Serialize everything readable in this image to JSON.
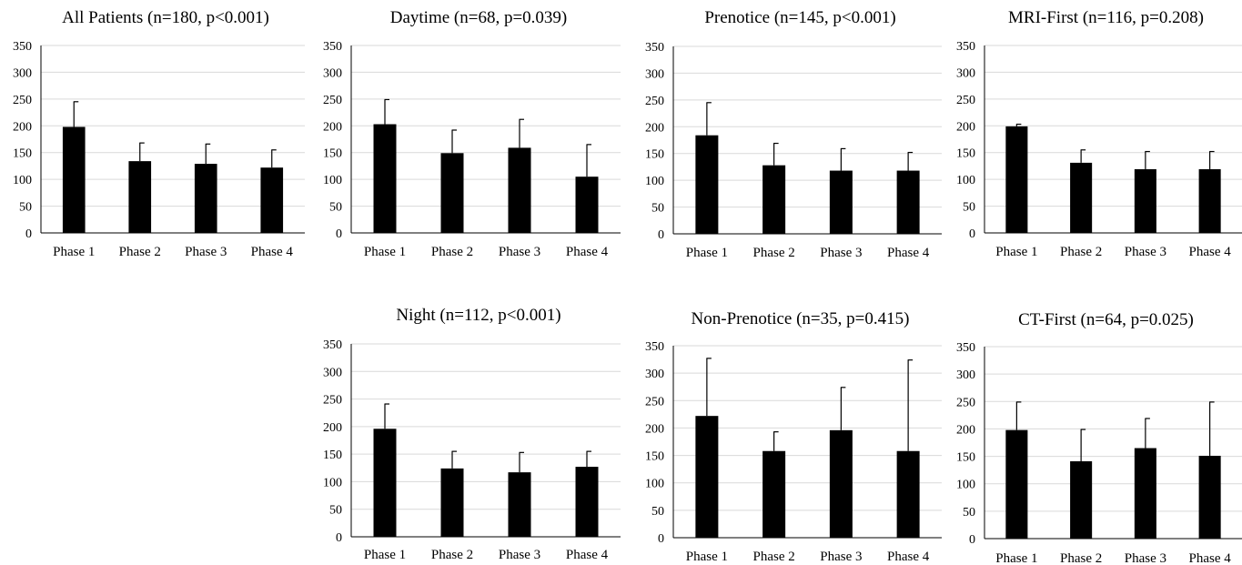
{
  "chart_data": [
    {
      "type": "bar",
      "title": "All Patients (n=180, p<0.001)",
      "categories": [
        "Phase 1",
        "Phase 2",
        "Phase 3",
        "Phase 4"
      ],
      "values": [
        198,
        134,
        129,
        122
      ],
      "error_upper": [
        245,
        168,
        166,
        155
      ],
      "yticks": [
        0,
        50,
        100,
        150,
        200,
        250,
        300,
        350
      ],
      "ylim": [
        0,
        350
      ],
      "grid": true
    },
    {
      "type": "bar",
      "title": "Daytime (n=68, p=0.039)",
      "categories": [
        "Phase 1",
        "Phase 2",
        "Phase 3",
        "Phase 4"
      ],
      "values": [
        203,
        149,
        159,
        105
      ],
      "error_upper": [
        249,
        192,
        212,
        165
      ],
      "yticks": [
        0,
        50,
        100,
        150,
        200,
        250,
        300,
        350
      ],
      "ylim": [
        0,
        350
      ],
      "grid": true
    },
    {
      "type": "bar",
      "title": "Prenotice (n=145, p<0.001)",
      "categories": [
        "Phase 1",
        "Phase 2",
        "Phase 3",
        "Phase 4"
      ],
      "values": [
        184,
        128,
        118,
        118
      ],
      "error_upper": [
        245,
        169,
        159,
        152
      ],
      "yticks": [
        0,
        50,
        100,
        150,
        200,
        250,
        300,
        350
      ],
      "ylim": [
        0,
        350
      ],
      "grid": true
    },
    {
      "type": "bar",
      "title": "MRI-First (n=116, p=0.208)",
      "categories": [
        "Phase 1",
        "Phase 2",
        "Phase 3",
        "Phase 4"
      ],
      "values": [
        199,
        131,
        119,
        119
      ],
      "error_upper": [
        203,
        155,
        152,
        152
      ],
      "yticks": [
        0,
        50,
        100,
        150,
        200,
        250,
        300,
        350
      ],
      "ylim": [
        0,
        350
      ],
      "grid": true
    },
    {
      "type": "bar",
      "title": "Night (n=112, p<0.001)",
      "categories": [
        "Phase 1",
        "Phase 2",
        "Phase 3",
        "Phase 4"
      ],
      "values": [
        196,
        124,
        117,
        127
      ],
      "error_upper": [
        241,
        155,
        153,
        155
      ],
      "yticks": [
        0,
        50,
        100,
        150,
        200,
        250,
        300,
        350
      ],
      "ylim": [
        0,
        350
      ],
      "grid": true
    },
    {
      "type": "bar",
      "title": "Non-Prenotice (n=35, p=0.415)",
      "categories": [
        "Phase 1",
        "Phase 2",
        "Phase 3",
        "Phase 4"
      ],
      "values": [
        222,
        158,
        196,
        158
      ],
      "error_upper": [
        327,
        193,
        274,
        324
      ],
      "yticks": [
        0,
        50,
        100,
        150,
        200,
        250,
        300,
        350
      ],
      "ylim": [
        0,
        350
      ],
      "grid": true
    },
    {
      "type": "bar",
      "title": "CT-First (n=64, p=0.025)",
      "categories": [
        "Phase 1",
        "Phase 2",
        "Phase 3",
        "Phase 4"
      ],
      "values": [
        198,
        141,
        165,
        151
      ],
      "error_upper": [
        249,
        199,
        219,
        249
      ],
      "yticks": [
        0,
        50,
        100,
        150,
        200,
        250,
        300,
        350
      ],
      "ylim": [
        0,
        350
      ],
      "grid": true
    }
  ]
}
